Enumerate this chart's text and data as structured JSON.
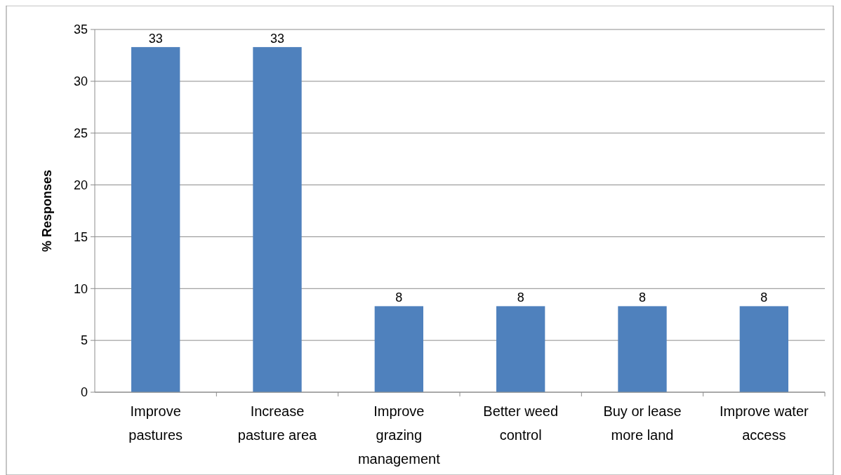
{
  "chart_data": {
    "type": "bar",
    "ylabel": "% Responses",
    "categories": [
      "Improve pastures",
      "Increase pasture area",
      "Improve grazing management",
      "Better weed control",
      "Buy or lease more land",
      "Improve water access"
    ],
    "values": [
      33.3,
      33.3,
      8.3,
      8.3,
      8.3,
      8.3
    ],
    "value_labels": [
      "33",
      "33",
      "8",
      "8",
      "8",
      "8"
    ],
    "color": "#4f81bd",
    "ylim": [
      0,
      35
    ],
    "yticks": [
      0,
      5,
      10,
      15,
      20,
      25,
      30,
      35
    ],
    "grid": "y"
  }
}
